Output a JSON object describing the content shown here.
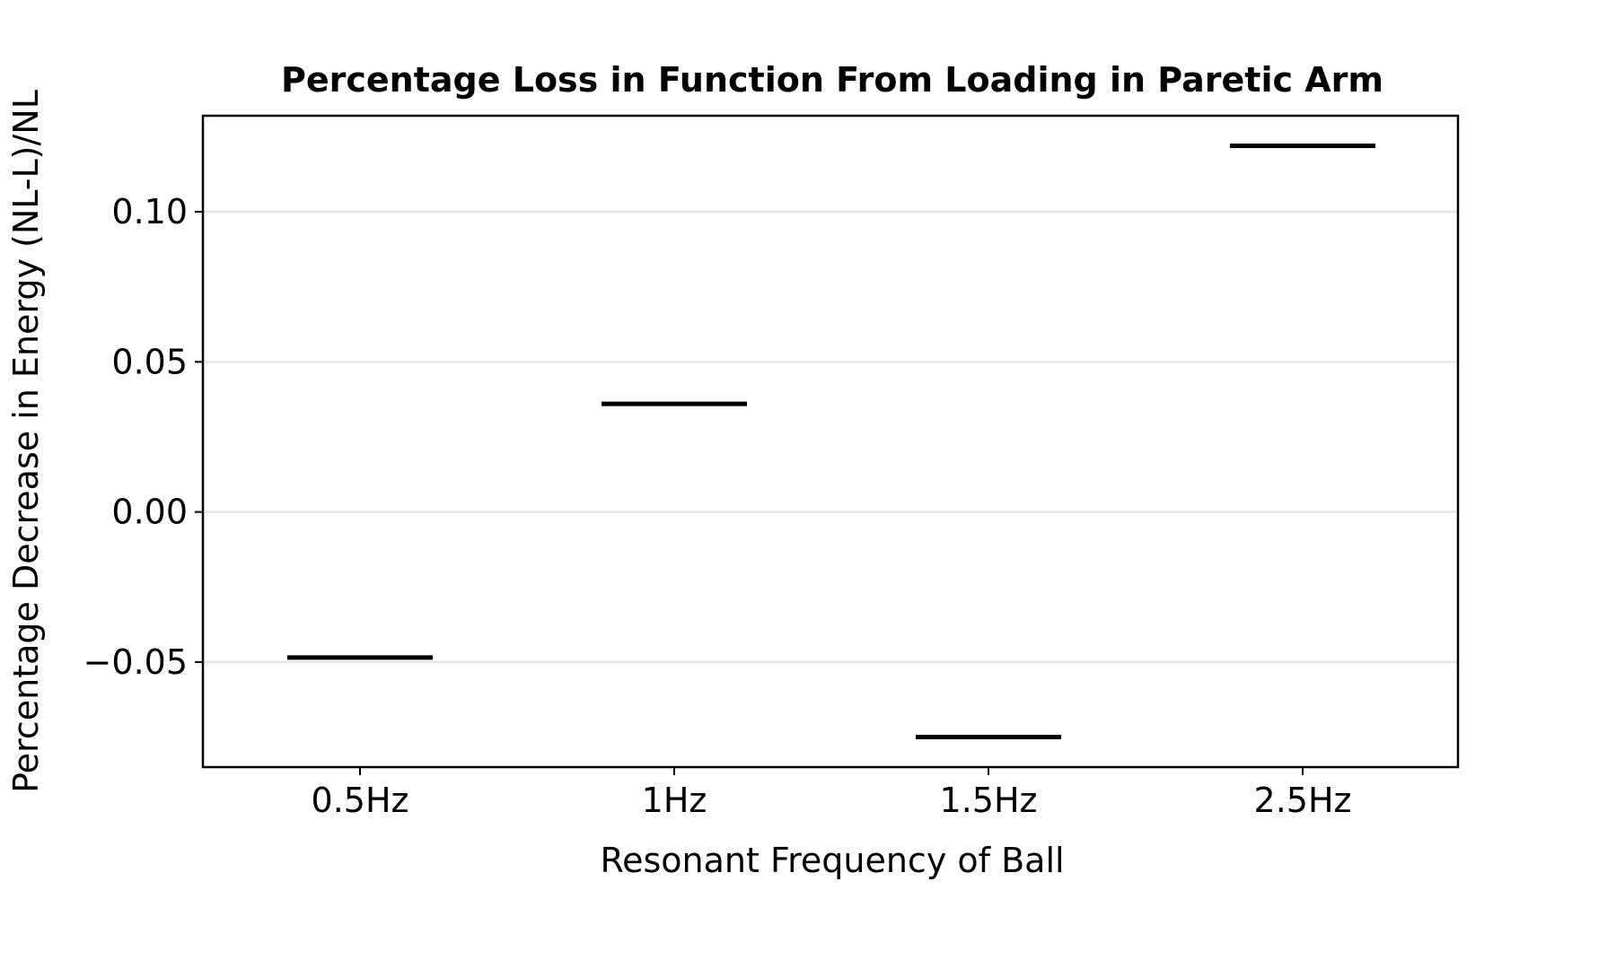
{
  "chart_data": {
    "type": "bar",
    "style": "horizontal-level-markers",
    "title": "Percentage Loss in Function From Loading in Paretic Arm",
    "xlabel": "Resonant Frequency of Ball",
    "ylabel": "Percentage Decrease in Energy (NL-L)/NL",
    "categories": [
      "0.5Hz",
      "1Hz",
      "1.5Hz",
      "2.5Hz"
    ],
    "values": [
      -0.0485,
      0.036,
      -0.075,
      0.122
    ],
    "ylim": [
      -0.085,
      0.132
    ],
    "yticks": [
      0.1,
      0.05,
      0.0,
      -0.05
    ],
    "ytick_labels": [
      "0.10",
      "0.05",
      "0.00",
      "−0.05"
    ],
    "grid": "horizontal",
    "legend": "none",
    "colors": {
      "marker": "#000000",
      "grid": "#e6e6e6",
      "frame": "#000000"
    }
  }
}
